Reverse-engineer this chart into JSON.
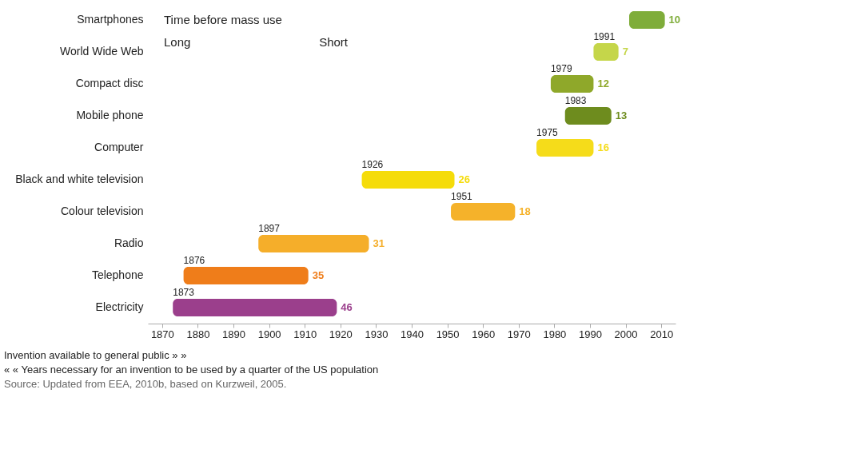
{
  "chart_data": {
    "type": "bar",
    "orientation": "horizontal",
    "data_labels": true,
    "categories": [
      "Smartphones",
      "World Wide Web",
      "Compact disc",
      "Mobile phone",
      "Computer",
      "Black and white television",
      "Colour television",
      "Radio",
      "Telephone",
      "Electricity"
    ],
    "base": [
      2001,
      1991,
      1979,
      1983,
      1975,
      1926,
      1951,
      1897,
      1876,
      1873
    ],
    "values": [
      10,
      7,
      12,
      13,
      16,
      26,
      18,
      31,
      35,
      46
    ],
    "colors": [
      "#7fad3a",
      "#c5d64a",
      "#8fa82a",
      "#6e8c1e",
      "#f5dc1a",
      "#f5dc0a",
      "#f5b22a",
      "#f5ae2a",
      "#ef7d1a",
      "#9b3f8c"
    ],
    "xlim": [
      1866,
      2014
    ],
    "xticks": [
      1870,
      1880,
      1890,
      1900,
      1910,
      1920,
      1930,
      1940,
      1950,
      1960,
      1970,
      1980,
      1990,
      2000,
      2010
    ],
    "annotations": [
      "Time before mass use",
      "Long",
      "Short",
      {
        "text": "1991",
        "x": 1991,
        "y": "World Wide Web"
      },
      {
        "text": "1979",
        "x": 1979,
        "y": "Compact disc"
      },
      {
        "text": "1983",
        "x": 1983,
        "y": "Mobile phone"
      },
      {
        "text": "1975",
        "x": 1975,
        "y": "Computer"
      },
      {
        "text": "1926",
        "x": 1926,
        "y": "Black and white television"
      },
      {
        "text": "1951",
        "x": 1951,
        "y": "Colour television"
      },
      {
        "text": "1897",
        "x": 1897,
        "y": "Radio"
      },
      {
        "text": "1876",
        "x": 1876,
        "y": "Telephone"
      },
      {
        "text": "1873",
        "x": 1873,
        "y": "Electricity"
      },
      "Invention available to general public » »",
      "« « Years necessary for an invention to be used by a quarter of the US population",
      "Source: Updated from EEA, 2010b, based on Kurzweil, 2005."
    ]
  }
}
